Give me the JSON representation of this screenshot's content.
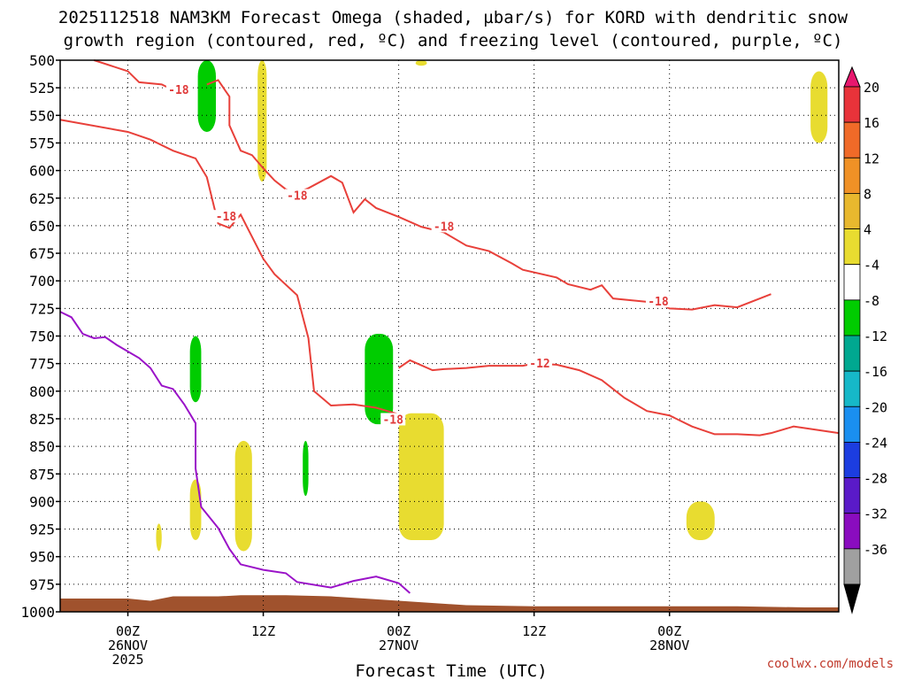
{
  "chart_data": {
    "type": "time-height cross section",
    "title_line1": "2025112518 NAM3KM Forecast Omega (shaded, µbar/s) for KORD with dendritic snow",
    "title_line2": "growth region (contoured, red, ºC) and freezing level (contoured, purple, ºC)",
    "xlabel": "Forecast Time (UTC)",
    "x_range_hours": [
      -6,
      63
    ],
    "x_ticks": [
      {
        "hour": 0,
        "line1": "00Z",
        "line2": "26NOV",
        "line3": "2025"
      },
      {
        "hour": 12,
        "line1": "12Z",
        "line2": "",
        "line3": ""
      },
      {
        "hour": 24,
        "line1": "00Z",
        "line2": "27NOV",
        "line3": ""
      },
      {
        "hour": 36,
        "line1": "12Z",
        "line2": "",
        "line3": ""
      },
      {
        "hour": 48,
        "line1": "00Z",
        "line2": "28NOV",
        "line3": ""
      }
    ],
    "y_ticks": [
      500,
      525,
      550,
      575,
      600,
      625,
      650,
      675,
      700,
      725,
      750,
      775,
      800,
      825,
      850,
      875,
      900,
      925,
      950,
      975,
      1000
    ],
    "y_range_hpa": [
      500,
      1000
    ],
    "colorbar": {
      "labels": [
        "20",
        "16",
        "12",
        "8",
        "4",
        "-4",
        "-8",
        "-12",
        "-16",
        "-20",
        "-24",
        "-28",
        "-32",
        "-36"
      ],
      "colors": [
        "#e8176e",
        "#e8333a",
        "#f06a28",
        "#f09126",
        "#e8b82e",
        "#e8dc30",
        "#ffffff",
        "#00cc00",
        "#00a890",
        "#16b8c8",
        "#1a8ff0",
        "#1c3de0",
        "#5a1ac8",
        "#8a0cbf",
        "#a0a0a0",
        "#000000"
      ]
    },
    "contours_dgz": [
      {
        "value": -18,
        "label": "-18",
        "points": [
          [
            -6,
            554
          ],
          [
            0,
            565
          ],
          [
            2,
            572
          ],
          [
            4,
            582
          ],
          [
            6,
            589
          ],
          [
            7,
            606
          ],
          [
            8,
            648
          ],
          [
            9,
            652
          ],
          [
            10,
            640
          ],
          [
            12,
            680
          ],
          [
            13,
            694
          ],
          [
            15,
            713
          ],
          [
            16,
            752
          ],
          [
            16.5,
            800
          ],
          [
            18,
            813
          ],
          [
            20,
            812
          ],
          [
            22,
            815
          ],
          [
            24,
            821
          ]
        ]
      },
      {
        "value": -18,
        "label": "-18",
        "points": [
          [
            -3,
            500
          ],
          [
            0,
            510
          ],
          [
            1,
            520
          ],
          [
            3,
            522
          ],
          [
            4,
            527
          ]
        ]
      },
      {
        "value": -18,
        "label": "-18",
        "points": [
          [
            7,
            522
          ],
          [
            8,
            518
          ],
          [
            9,
            533
          ],
          [
            9,
            559
          ],
          [
            10,
            582
          ],
          [
            11,
            586
          ],
          [
            12,
            598
          ],
          [
            13,
            609
          ],
          [
            14,
            617
          ],
          [
            15,
            620
          ],
          [
            16,
            616
          ],
          [
            18,
            605
          ],
          [
            19,
            611
          ],
          [
            20,
            638
          ],
          [
            21,
            626
          ],
          [
            22,
            634
          ],
          [
            24,
            642
          ],
          [
            26,
            651
          ],
          [
            28,
            656
          ],
          [
            30,
            668
          ],
          [
            32,
            673
          ],
          [
            34,
            684
          ],
          [
            35,
            690
          ],
          [
            38,
            697
          ],
          [
            39,
            703
          ],
          [
            41,
            708
          ],
          [
            42,
            704
          ],
          [
            43,
            716
          ],
          [
            45,
            718
          ],
          [
            47,
            720
          ],
          [
            48,
            725
          ],
          [
            50,
            726
          ],
          [
            52,
            722
          ],
          [
            54,
            724
          ],
          [
            57,
            712
          ]
        ]
      },
      {
        "value": -12,
        "label": "-12",
        "points": [
          [
            24,
            779
          ],
          [
            25,
            772
          ],
          [
            27,
            781
          ],
          [
            28,
            780
          ],
          [
            30,
            779
          ],
          [
            32,
            777
          ],
          [
            35,
            777
          ],
          [
            36,
            775
          ],
          [
            38,
            776
          ],
          [
            40,
            781
          ],
          [
            42,
            790
          ],
          [
            44,
            806
          ],
          [
            46,
            818
          ],
          [
            48,
            822
          ],
          [
            50,
            832
          ],
          [
            52,
            839
          ],
          [
            54,
            839
          ],
          [
            56,
            840
          ],
          [
            57,
            838
          ],
          [
            59,
            832
          ],
          [
            61,
            835
          ],
          [
            63,
            838
          ]
        ]
      }
    ],
    "contours_freezing": [
      {
        "value": 0,
        "label": "0",
        "points": [
          [
            -6,
            728
          ],
          [
            -5,
            733
          ],
          [
            -4,
            748
          ],
          [
            -3,
            752
          ],
          [
            -2,
            751
          ],
          [
            -1,
            758
          ],
          [
            1,
            770
          ],
          [
            2,
            779
          ],
          [
            3,
            795
          ],
          [
            4,
            798
          ],
          [
            5,
            812
          ],
          [
            6,
            829
          ],
          [
            6,
            870
          ],
          [
            6.5,
            905
          ],
          [
            8,
            924
          ],
          [
            9,
            943
          ],
          [
            10,
            957
          ],
          [
            12,
            962
          ],
          [
            14,
            965
          ],
          [
            15,
            973
          ],
          [
            18,
            978
          ],
          [
            20,
            972
          ],
          [
            22,
            968
          ],
          [
            24,
            974
          ],
          [
            25,
            983
          ]
        ]
      }
    ],
    "shaded_regions": [
      {
        "color_value": -6,
        "fill": "#00cc00",
        "times": [
          6.2,
          7.8
        ],
        "pressures": [
          500,
          565
        ]
      },
      {
        "color_value": -6,
        "fill": "#00cc00",
        "times": [
          5.5,
          6.5
        ],
        "pressures": [
          750,
          810
        ]
      },
      {
        "color_value": -6,
        "fill": "#00cc00",
        "times": [
          21,
          23.5
        ],
        "pressures": [
          748,
          830
        ]
      },
      {
        "color_value": -6,
        "fill": "#00cc00",
        "times": [
          15.5,
          16
        ],
        "pressures": [
          845,
          895
        ]
      },
      {
        "color_value": 6,
        "fill": "#e8dc30",
        "times": [
          11.5,
          12.3
        ],
        "pressures": [
          500,
          610
        ]
      },
      {
        "color_value": 6,
        "fill": "#e8dc30",
        "times": [
          25.5,
          26.5
        ],
        "pressures": [
          500,
          505
        ]
      },
      {
        "color_value": 6,
        "fill": "#e8dc30",
        "times": [
          60.5,
          62
        ],
        "pressures": [
          510,
          575
        ]
      },
      {
        "color_value": 6,
        "fill": "#e8dc30",
        "times": [
          5.5,
          6.5
        ],
        "pressures": [
          880,
          935
        ]
      },
      {
        "color_value": 6,
        "fill": "#e8dc30",
        "times": [
          2.5,
          3
        ],
        "pressures": [
          920,
          945
        ]
      },
      {
        "color_value": 6,
        "fill": "#e8dc30",
        "times": [
          9.5,
          11
        ],
        "pressures": [
          845,
          945
        ]
      },
      {
        "color_value": 6,
        "fill": "#e8dc30",
        "times": [
          24,
          28
        ],
        "pressures": [
          820,
          935
        ]
      },
      {
        "color_value": 6,
        "fill": "#e8dc30",
        "times": [
          49.5,
          52
        ],
        "pressures": [
          900,
          935
        ]
      }
    ],
    "terrain": {
      "fill": "#a0522d",
      "points": [
        [
          -6,
          988
        ],
        [
          0,
          988
        ],
        [
          2,
          990
        ],
        [
          3,
          988
        ],
        [
          4,
          986
        ],
        [
          8,
          986
        ],
        [
          10,
          985
        ],
        [
          14,
          985
        ],
        [
          18,
          986
        ],
        [
          24,
          990
        ],
        [
          30,
          994
        ],
        [
          36,
          995
        ],
        [
          42,
          995
        ],
        [
          48,
          995
        ],
        [
          54,
          995
        ],
        [
          60,
          996
        ],
        [
          63,
          996
        ]
      ]
    }
  },
  "credit": "coolwx.com/models"
}
